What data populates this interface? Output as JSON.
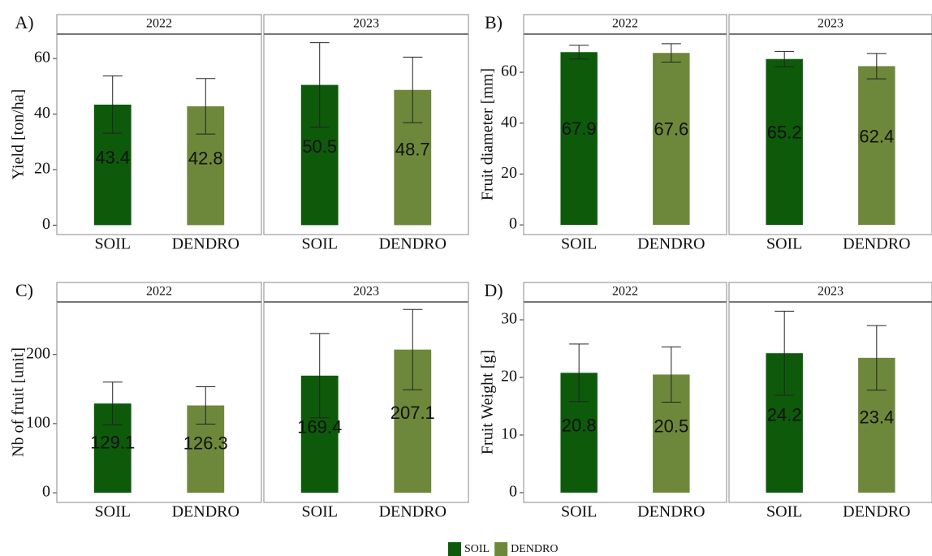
{
  "chart_data": [
    {
      "type": "bar",
      "label": "A)",
      "ylabel": "Yield [ton/ha]",
      "ylim": [
        -3.4,
        68.8
      ],
      "yticks": [
        0,
        20,
        40,
        60
      ],
      "facets": [
        {
          "title": "2022",
          "categories": [
            "SOIL",
            "DENDRO"
          ],
          "values": [
            43.4,
            42.8
          ],
          "errors": [
            10.3,
            10.0
          ]
        },
        {
          "title": "2023",
          "categories": [
            "SOIL",
            "DENDRO"
          ],
          "values": [
            50.5,
            48.7
          ],
          "errors": [
            15.2,
            11.8
          ]
        }
      ]
    },
    {
      "type": "bar",
      "label": "B)",
      "ylabel": "Fruit diameter [mm]",
      "ylim": [
        -3.8,
        75
      ],
      "yticks": [
        0,
        20,
        40,
        60
      ],
      "facets": [
        {
          "title": "2022",
          "categories": [
            "SOIL",
            "DENDRO"
          ],
          "values": [
            67.9,
            67.6
          ],
          "errors": [
            2.7,
            3.6
          ]
        },
        {
          "title": "2023",
          "categories": [
            "SOIL",
            "DENDRO"
          ],
          "values": [
            65.2,
            62.4
          ],
          "errors": [
            3.0,
            5.0
          ]
        }
      ]
    },
    {
      "type": "bar",
      "label": "C)",
      "ylabel": "Nb of fruit [unit]",
      "ylim": [
        -14,
        276
      ],
      "yticks": [
        0,
        100,
        200
      ],
      "facets": [
        {
          "title": "2022",
          "categories": [
            "SOIL",
            "DENDRO"
          ],
          "values": [
            129.1,
            126.3
          ],
          "errors": [
            31,
            27
          ]
        },
        {
          "title": "2023",
          "categories": [
            "SOIL",
            "DENDRO"
          ],
          "values": [
            169.4,
            207.1
          ],
          "errors": [
            61,
            58
          ]
        }
      ]
    },
    {
      "type": "bar",
      "label": "D)",
      "ylabel": "Fruit Weight [g]",
      "ylim": [
        -1.7,
        33.1
      ],
      "yticks": [
        0,
        10,
        20,
        30
      ],
      "facets": [
        {
          "title": "2022",
          "categories": [
            "SOIL",
            "DENDRO"
          ],
          "values": [
            20.8,
            20.5
          ],
          "errors": [
            5.0,
            4.8
          ]
        },
        {
          "title": "2023",
          "categories": [
            "SOIL",
            "DENDRO"
          ],
          "values": [
            24.2,
            23.4
          ],
          "errors": [
            7.3,
            5.6
          ]
        }
      ]
    }
  ],
  "legend": [
    {
      "name": "SOIL",
      "color": "#0d5a0b"
    },
    {
      "name": "DENDRO",
      "color": "#6d883b"
    }
  ]
}
